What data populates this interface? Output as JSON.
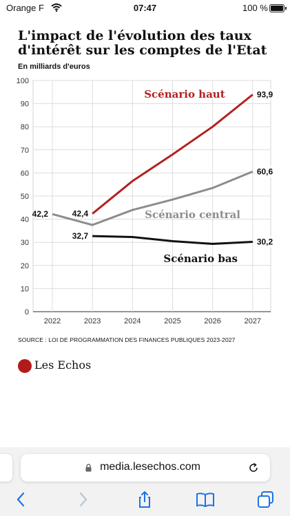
{
  "status_bar": {
    "carrier": "Orange F",
    "time": "07:47",
    "battery": "100 %"
  },
  "chart_data": {
    "type": "line",
    "title": "L'impact de l'évolution des taux d'intérêt sur les comptes de l'Etat",
    "subtitle": "En milliards d'euros",
    "x": [
      "2022",
      "2023",
      "2024",
      "2025",
      "2026",
      "2027"
    ],
    "ylim": [
      0,
      100
    ],
    "yticks": [
      0,
      10,
      20,
      30,
      40,
      50,
      60,
      70,
      80,
      90,
      100
    ],
    "grid": true,
    "series": [
      {
        "name": "Scénario haut",
        "color": "#b3211f",
        "points": [
          [
            2023,
            42.4
          ],
          [
            2024,
            56.5
          ],
          [
            2025,
            68
          ],
          [
            2026,
            80
          ],
          [
            2027,
            93.9
          ]
        ],
        "labels": [
          {
            "text": "42,4",
            "at": 0,
            "side": "left"
          },
          {
            "text": "93,9",
            "at": 4,
            "side": "right"
          }
        ]
      },
      {
        "name": "Scénario central",
        "color": "#8c8c8c",
        "points": [
          [
            2022,
            42.2
          ],
          [
            2023,
            37.5
          ],
          [
            2024,
            44
          ],
          [
            2025,
            48.5
          ],
          [
            2026,
            53.5
          ],
          [
            2027,
            60.6
          ]
        ],
        "labels": [
          {
            "text": "42,2",
            "at": 0,
            "side": "left"
          },
          {
            "text": "60,6",
            "at": 5,
            "side": "right"
          }
        ]
      },
      {
        "name": "Scénario bas",
        "color": "#111111",
        "points": [
          [
            2023,
            32.7
          ],
          [
            2024,
            32.3
          ],
          [
            2025,
            30.5
          ],
          [
            2026,
            29.3
          ],
          [
            2027,
            30.2
          ]
        ],
        "labels": [
          {
            "text": "32,7",
            "at": 0,
            "side": "left"
          },
          {
            "text": "30,2",
            "at": 4,
            "side": "right"
          }
        ]
      }
    ],
    "annotations": [
      {
        "text": "Scénario haut",
        "color": "#b3211f",
        "x": 2025.3,
        "y": 92.5
      },
      {
        "text": "Scénario central",
        "color": "#8c8c8c",
        "x": 2025.5,
        "y": 40.5
      },
      {
        "text": "Scénario bas",
        "color": "#111111",
        "x": 2025.7,
        "y": 21.5
      }
    ]
  },
  "source": "SOURCE :  LOI DE PROGRAMMATION DES FINANCES PUBLIQUES 2023-2027",
  "logo": {
    "text": "Les Echos",
    "color": "#b31b1b"
  },
  "browser": {
    "url": "media.lesechos.com"
  }
}
